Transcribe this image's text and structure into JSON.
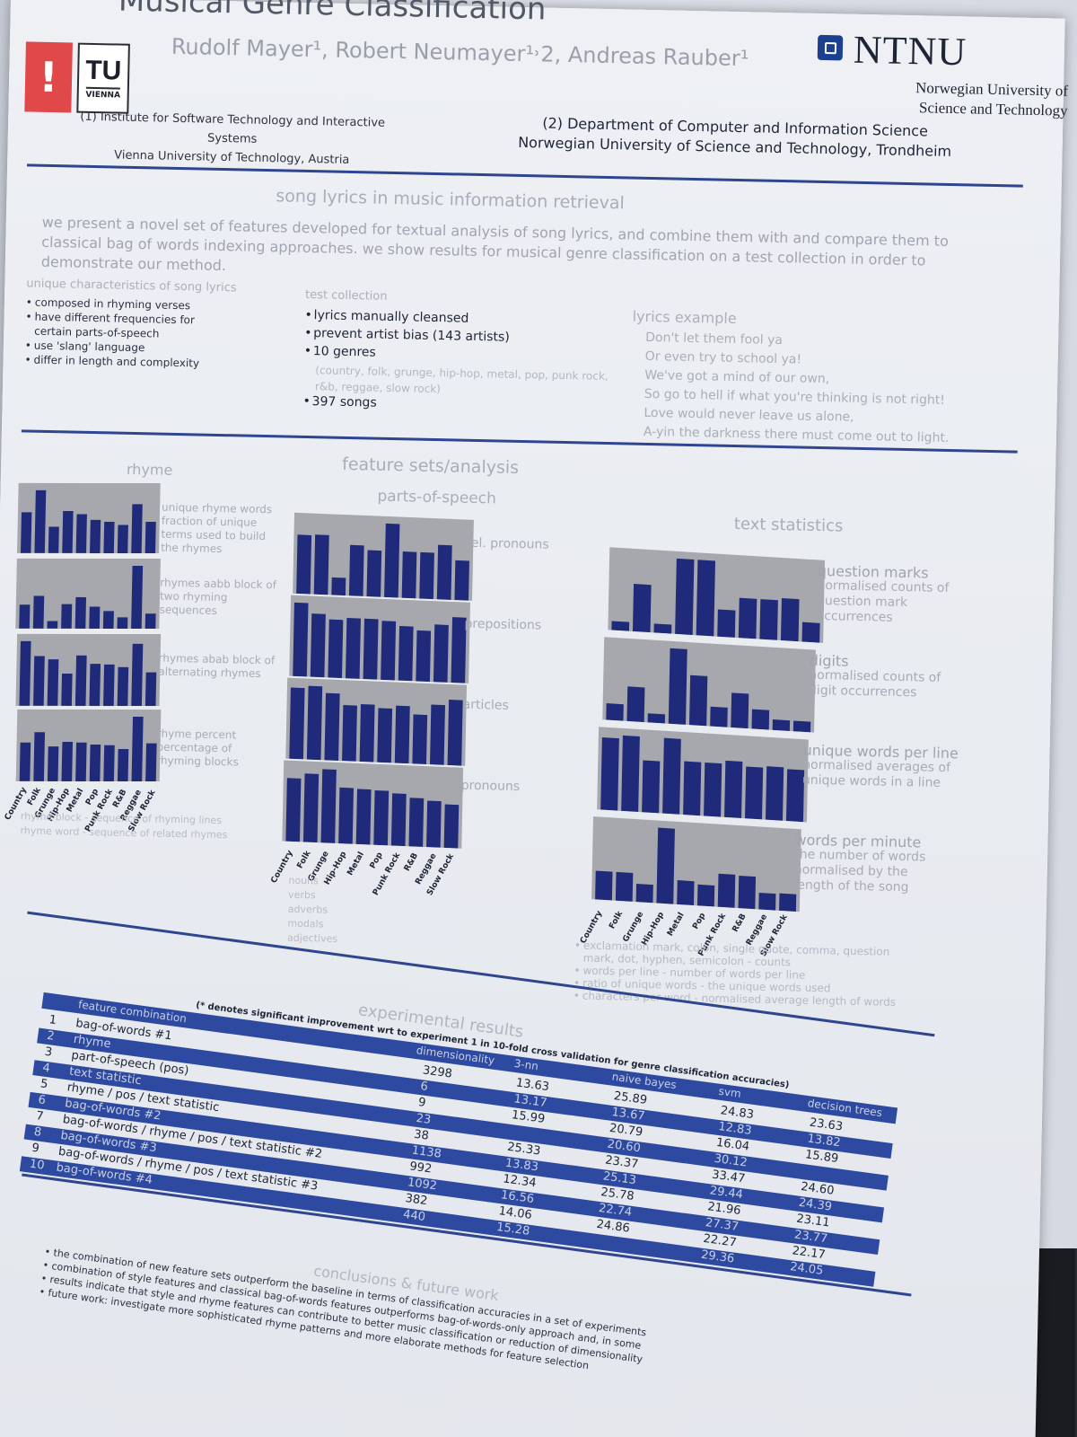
{
  "poster": {
    "title": "Musical Genre Classification",
    "authors": "Rudolf Mayer¹, Robert Neumayer¹˒2, Andreas Rauber¹",
    "affiliation_1": [
      "(1) Institute for Software Technology and Interactive Systems",
      "Vienna University of Technology, Austria"
    ],
    "affiliation_2": [
      "(2) Department of Computer and Information Science",
      "Norwegian University of Science and Technology, Trondheim"
    ],
    "tu_logo": {
      "mark": "!",
      "name": "TU",
      "city": "VIENNA"
    },
    "ntnu_logo": {
      "name": "NTNU",
      "subtitle": [
        "Norwegian University of",
        "Science and Technology"
      ]
    }
  },
  "intro": {
    "title": "song lyrics in music information retrieval",
    "text": "we present a novel set of features developed for textual analysis of song lyrics, and combine them with and compare them to classical bag of words indexing approaches. we show results for musical genre classification on a test collection in order to demonstrate our method."
  },
  "characteristics": {
    "title": "unique characteristics of song lyrics",
    "items": [
      "composed in rhyming verses",
      "have different frequencies for certain parts-of-speech",
      "use 'slang' language",
      "differ in length and complexity"
    ]
  },
  "collection": {
    "title": "test collection",
    "items": [
      "lyrics manually cleansed",
      "prevent artist bias (143 artists)",
      "10 genres"
    ],
    "genres_detail": "(country, folk, grunge, hip-hop, metal, pop, punk rock, r&b, reggae, slow rock)",
    "songs": "397 songs"
  },
  "lyrics_example": {
    "title": "lyrics example",
    "lines": [
      "Don't let them fool ya",
      "Or even try to school ya!",
      "We've got a mind of our own,",
      "So go to hell if what you're thinking is not right!",
      "Love would never leave us alone,",
      "A-yin the darkness there must come out to light."
    ]
  },
  "features": {
    "title": "feature sets/analysis",
    "rhyme_title": "rhyme",
    "pos_title": "parts-of-speech",
    "text_title": "text statistics",
    "genres": [
      "Country",
      "Folk",
      "Grunge",
      "Hip-Hop",
      "Metal",
      "Pop",
      "Punk Rock",
      "R&B",
      "Reggae",
      "Slow Rock"
    ],
    "rhyme_labels": [
      "unique rhyme words fraction of unique terms used to build the rhymes",
      "rhymes aabb block of two rhyming sequences",
      "rhymes abab block of alternating rhymes",
      "rhyme percent percentage of rhyming blocks"
    ],
    "rhyme_legend": [
      "rhyme block - sequence of rhyming lines",
      "rhyme word - sequence of related rhymes"
    ],
    "pos_labels": [
      "rel. pronouns",
      "prepositions",
      "articles",
      "pronouns"
    ],
    "pos_legend": [
      "nouns",
      "verbs",
      "adverbs",
      "modals",
      "adjectives"
    ],
    "text_labels": [
      {
        "head": "question marks",
        "desc": "normalised counts of question mark occurrences"
      },
      {
        "head": "digits",
        "desc": "normalised counts of digit occurrences"
      },
      {
        "head": "unique words per line",
        "desc": "normalised averages of unique words in a line"
      },
      {
        "head": "words per minute",
        "desc": "the number of words normalised by the length of the song"
      }
    ],
    "text_notes": [
      "exclamation mark, colon, single quote, comma, question mark, dot, hyphen, semicolon - counts",
      "words per line - number of words per line",
      "ratio of unique words - the unique words used",
      "characters per word - normalised average length of words"
    ]
  },
  "chart_data": [
    {
      "type": "bar",
      "categories": [
        "Country",
        "Folk",
        "Grunge",
        "Hip-Hop",
        "Metal",
        "Pop",
        "Punk Rock",
        "R&B",
        "Reggae",
        "Slow Rock"
      ],
      "values": [
        6.5,
        10,
        4.2,
        6.7,
        6.2,
        5.3,
        5,
        4.5,
        7.8,
        5
      ]
    },
    {
      "type": "bar",
      "categories": [
        "Country",
        "Folk",
        "Grunge",
        "Hip-Hop",
        "Metal",
        "Pop",
        "Punk Rock",
        "R&B",
        "Reggae",
        "Slow Rock"
      ],
      "values": [
        3.8,
        5.2,
        1.2,
        3.9,
        5,
        3.5,
        2.8,
        1.8,
        10,
        2.4
      ]
    },
    {
      "type": "bar",
      "categories": [
        "Country",
        "Folk",
        "Grunge",
        "Hip-Hop",
        "Metal",
        "Pop",
        "Punk Rock",
        "R&B",
        "Reggae",
        "Slow Rock"
      ],
      "values": [
        10,
        7.7,
        7.2,
        5,
        7.8,
        6.5,
        6.4,
        6,
        9.6,
        5.2
      ]
    },
    {
      "type": "bar",
      "categories": [
        "Country",
        "Folk",
        "Grunge",
        "Hip-Hop",
        "Metal",
        "Pop",
        "Punk Rock",
        "R&B",
        "Reggae",
        "Slow Rock"
      ],
      "values": [
        6,
        7.6,
        5.4,
        6.1,
        6,
        5.7,
        5.6,
        5,
        10,
        5.9
      ]
    },
    {
      "type": "bar",
      "categories": [
        "Country",
        "Folk",
        "Grunge",
        "Hip-Hop",
        "Metal",
        "Pop",
        "Punk Rock",
        "R&B",
        "Reggae",
        "Slow Rock"
      ],
      "values": [
        8,
        8.1,
        2.4,
        6.9,
        6.3,
        10,
        6.3,
        6.3,
        7.4,
        5.4
      ]
    },
    {
      "type": "bar",
      "categories": [
        "Country",
        "Folk",
        "Grunge",
        "Hip-Hop",
        "Metal",
        "Pop",
        "Punk Rock",
        "R&B",
        "Reggae",
        "Slow Rock"
      ],
      "values": [
        10,
        8.6,
        7.9,
        8.2,
        8.2,
        8,
        7.4,
        6.9,
        7.8,
        8.9
      ]
    },
    {
      "type": "bar",
      "categories": [
        "Country",
        "Folk",
        "Grunge",
        "Hip-Hop",
        "Metal",
        "Pop",
        "Punk Rock",
        "R&B",
        "Reggae",
        "Slow Rock"
      ],
      "values": [
        8.8,
        9.1,
        8.3,
        6.9,
        7.1,
        6.7,
        7.1,
        6.1,
        7.4,
        8.1
      ]
    },
    {
      "type": "bar",
      "categories": [
        "Country",
        "Folk",
        "Grunge",
        "Hip-Hop",
        "Metal",
        "Pop",
        "Punk Rock",
        "R&B",
        "Reggae",
        "Slow Rock"
      ],
      "values": [
        8.6,
        9.3,
        10,
        7.6,
        7.5,
        7.4,
        7.1,
        6.6,
        6.3,
        5.9
      ]
    },
    {
      "type": "bar",
      "categories": [
        "Country",
        "Folk",
        "Grunge",
        "Hip-Hop",
        "Metal",
        "Pop",
        "Punk Rock",
        "R&B",
        "Reggae",
        "Slow Rock"
      ],
      "values": [
        1.2,
        6.3,
        1.2,
        10,
        10,
        3.6,
        5.3,
        5.3,
        5.6,
        2.6
      ]
    },
    {
      "type": "bar",
      "categories": [
        "Country",
        "Folk",
        "Grunge",
        "Hip-Hop",
        "Metal",
        "Pop",
        "Punk Rock",
        "R&B",
        "Reggae",
        "Slow Rock"
      ],
      "values": [
        2.2,
        4.6,
        1.2,
        10,
        6.6,
        2.6,
        4.6,
        2.6,
        1.4,
        1.4
      ]
    },
    {
      "type": "bar",
      "categories": [
        "Country",
        "Folk",
        "Grunge",
        "Hip-Hop",
        "Metal",
        "Pop",
        "Punk Rock",
        "R&B",
        "Reggae",
        "Slow Rock"
      ],
      "values": [
        9.2,
        9.6,
        6.6,
        9.6,
        6.8,
        6.8,
        7.2,
        6.6,
        6.8,
        6.6
      ]
    },
    {
      "type": "bar",
      "categories": [
        "Country",
        "Folk",
        "Grunge",
        "Hip-Hop",
        "Metal",
        "Pop",
        "Punk Rock",
        "R&B",
        "Reggae",
        "Slow Rock"
      ],
      "values": [
        3.8,
        3.8,
        2.4,
        10,
        3.2,
        2.8,
        4.4,
        4.3,
        2.2,
        2.3
      ]
    }
  ],
  "results": {
    "title": "experimental results",
    "note": "(* denotes significant improvement wrt to experiment 1 in 10-fold cross validation for genre classification accuracies)",
    "columns": [
      "",
      "feature combination",
      "dimensionality",
      "3-nn",
      "naive bayes",
      "svm",
      "decision trees"
    ],
    "rows": [
      [
        "1",
        "bag-of-words #1",
        "3298",
        "13.63",
        "25.89",
        "24.83",
        "23.63"
      ],
      [
        "2",
        "rhyme",
        "6",
        "13.17",
        "13.67",
        "12.83",
        "13.82"
      ],
      [
        "3",
        "part-of-speech (pos)",
        "9",
        "15.99",
        "20.79",
        "16.04",
        "15.89"
      ],
      [
        "4",
        "text statistic",
        "23",
        "",
        "20.60",
        "30.12",
        ""
      ],
      [
        "5",
        "rhyme / pos / text statistic",
        "38",
        "25.33",
        "23.37",
        "33.47",
        "24.60"
      ],
      [
        "6",
        "bag-of-words #2",
        "1138",
        "13.83",
        "25.13",
        "29.44",
        "24.39"
      ],
      [
        "7",
        "bag-of-words / rhyme / pos / text statistic #2",
        "992",
        "12.34",
        "25.78",
        "21.96",
        "23.11"
      ],
      [
        "8",
        "bag-of-words #3",
        "1092",
        "16.56",
        "22.74",
        "27.37",
        "23.77"
      ],
      [
        "9",
        "bag-of-words / rhyme / pos / text statistic #3",
        "382",
        "14.06",
        "24.86",
        "22.27",
        "22.17"
      ],
      [
        "10",
        "bag-of-words #4",
        "440",
        "15.28",
        "",
        "29.36",
        "24.05"
      ]
    ]
  },
  "conclusions": {
    "title": "conclusions & future work",
    "items": [
      "the combination of new feature sets outperform the baseline in terms of classification accuracies in a set of experiments",
      "combination of style features and classical bag-of-words features outperforms bag-of-words-only approach and, in some",
      "results indicate that style and rhyme features can contribute to better music classification or reduction of dimensionality",
      "future work: investigate more sophisticated rhyme patterns and more elaborate methods for feature selection"
    ]
  },
  "colors": {
    "bar": "#1f2a7a",
    "chart_bg": "#a6a8ad",
    "accent": "#2e4aa0"
  }
}
